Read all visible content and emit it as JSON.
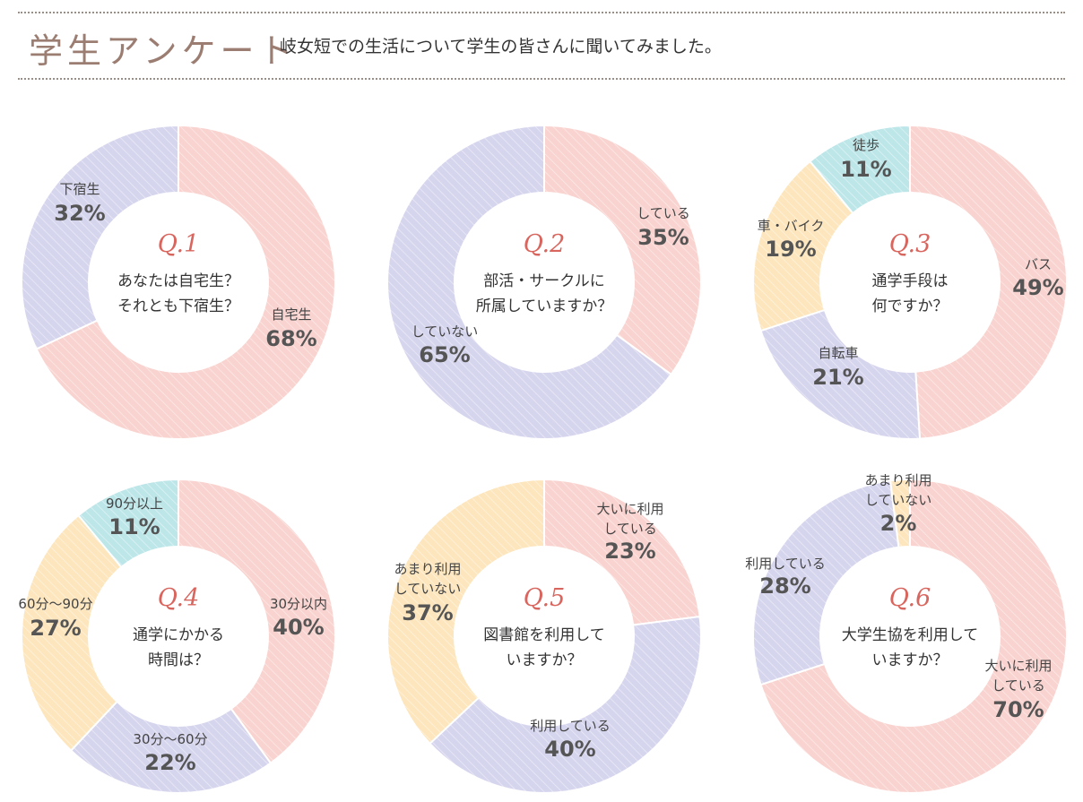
{
  "header": {
    "title": "学生アンケート",
    "subtitle": "岐女短での生活について学生の皆さんに聞いてみました。"
  },
  "colors": {
    "pink": "#f9d3cf",
    "purple": "#d6d5ee",
    "yellow": "#fde6bd",
    "cyan": "#bde6e9",
    "question_number": "#d9665e"
  },
  "chart_data": [
    {
      "type": "pie",
      "question_number": "Q.1",
      "question": [
        "あなたは自宅生？",
        "それとも下宿生？"
      ],
      "slices": [
        {
          "name": [
            "自宅生"
          ],
          "value": 68,
          "label": "68%",
          "color": "pink"
        },
        {
          "name": [
            "下宿生"
          ],
          "value": 32,
          "label": "32%",
          "color": "purple"
        }
      ]
    },
    {
      "type": "pie",
      "question_number": "Q.2",
      "question": [
        "部活・サークルに",
        "所属していますか？"
      ],
      "slices": [
        {
          "name": [
            "している"
          ],
          "value": 35,
          "label": "35%",
          "color": "pink"
        },
        {
          "name": [
            "していない"
          ],
          "value": 65,
          "label": "65%",
          "color": "purple"
        }
      ]
    },
    {
      "type": "pie",
      "question_number": "Q.3",
      "question": [
        "通学手段は",
        "何ですか？"
      ],
      "slices": [
        {
          "name": [
            "バス"
          ],
          "value": 49,
          "label": "49%",
          "color": "pink"
        },
        {
          "name": [
            "自転車"
          ],
          "value": 21,
          "label": "21%",
          "color": "purple"
        },
        {
          "name": [
            "車・バイク"
          ],
          "value": 19,
          "label": "19%",
          "color": "yellow"
        },
        {
          "name": [
            "徒歩"
          ],
          "value": 11,
          "label": "11%",
          "color": "cyan"
        }
      ]
    },
    {
      "type": "pie",
      "question_number": "Q.4",
      "question": [
        "通学にかかる",
        "時間は？"
      ],
      "slices": [
        {
          "name": [
            "30分以内"
          ],
          "value": 40,
          "label": "40%",
          "color": "pink"
        },
        {
          "name": [
            "30分～60分"
          ],
          "value": 22,
          "label": "22%",
          "color": "purple"
        },
        {
          "name": [
            "60分～90分"
          ],
          "value": 27,
          "label": "27%",
          "color": "yellow"
        },
        {
          "name": [
            "90分以上"
          ],
          "value": 11,
          "label": "11%",
          "color": "cyan"
        }
      ]
    },
    {
      "type": "pie",
      "question_number": "Q.5",
      "question": [
        "図書館を利用して",
        "いますか？"
      ],
      "slices": [
        {
          "name": [
            "大いに利用",
            "している"
          ],
          "value": 23,
          "label": "23%",
          "color": "pink"
        },
        {
          "name": [
            "利用している"
          ],
          "value": 40,
          "label": "40%",
          "color": "purple"
        },
        {
          "name": [
            "あまり利用",
            "していない"
          ],
          "value": 37,
          "label": "37%",
          "color": "yellow"
        }
      ]
    },
    {
      "type": "pie",
      "question_number": "Q.6",
      "question": [
        "大学生協を利用して",
        "いますか？"
      ],
      "slices": [
        {
          "name": [
            "大いに利用",
            "している"
          ],
          "value": 70,
          "label": "70%",
          "color": "pink"
        },
        {
          "name": [
            "利用している"
          ],
          "value": 28,
          "label": "28%",
          "color": "purple"
        },
        {
          "name": [
            "あまり利用",
            "していない"
          ],
          "value": 2,
          "label": "2%",
          "color": "yellow"
        }
      ]
    }
  ]
}
